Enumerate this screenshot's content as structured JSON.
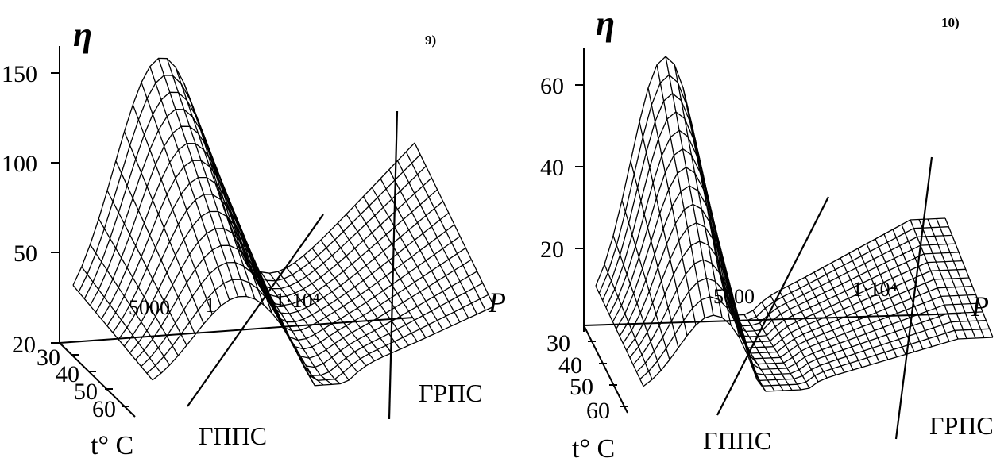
{
  "chart_data": [
    {
      "type": "surface",
      "panel_label": "9)",
      "zlabel": "η",
      "z_ticks": [
        "150",
        "100",
        "50",
        "20"
      ],
      "t_ticks": [
        "30",
        "40",
        "50",
        "60"
      ],
      "t_label": "t° C",
      "p_label": "P",
      "p_tick_labels": [
        "5000",
        "1",
        "1·10⁴"
      ],
      "region_labels": [
        "ГППС",
        "ГРПС"
      ],
      "zlim": [
        20,
        170
      ]
    },
    {
      "type": "surface",
      "panel_label": "10)",
      "zlabel": "η",
      "z_ticks": [
        "60",
        "40",
        "20"
      ],
      "t_ticks": [
        "30",
        "40",
        "50",
        "60"
      ],
      "t_label": "t° C",
      "p_label": "P",
      "p_tick_labels": [
        "5000",
        "1·10⁴"
      ],
      "region_labels": [
        "ГППС",
        "ГРПС"
      ],
      "zlim": [
        0,
        70
      ]
    }
  ]
}
